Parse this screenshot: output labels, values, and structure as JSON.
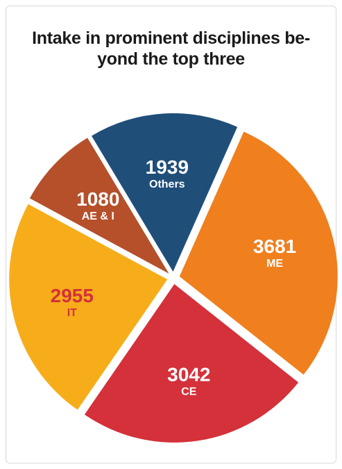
{
  "chart_data": {
    "type": "pie",
    "title_lines": [
      "Intake in prominent disciplines be-",
      "yond the top three"
    ],
    "slices": [
      {
        "label": "Others",
        "value": 1939,
        "color": "#1f4e79",
        "text_color": "#ffffff"
      },
      {
        "label": "ME",
        "value": 3681,
        "color": "#f07f1e",
        "text_color": "#ffffff"
      },
      {
        "label": "CE",
        "value": 3042,
        "color": "#d4313a",
        "text_color": "#ffffff"
      },
      {
        "label": "IT",
        "value": 2955,
        "color": "#f7ad1a",
        "text_color": "#d4313a"
      },
      {
        "label": "AE & I",
        "value": 1080,
        "color": "#b5502a",
        "text_color": "#ffffff"
      }
    ]
  }
}
